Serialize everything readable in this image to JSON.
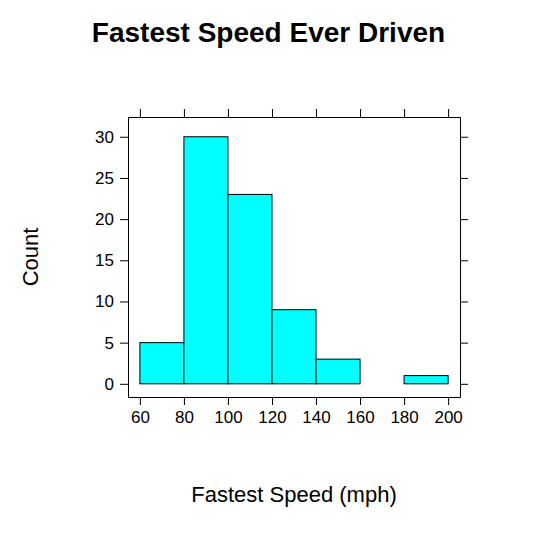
{
  "chart_data": {
    "type": "histogram",
    "title": "Fastest Speed Ever Driven",
    "x_label": "Fastest Speed (mph)",
    "y_label": "Count",
    "bins": [
      60,
      80,
      100,
      120,
      140,
      160,
      180,
      200
    ],
    "values": [
      5,
      30,
      23,
      9,
      3,
      0,
      1
    ],
    "color": "#00ffff",
    "xlim": [
      54.6,
      205.4
    ],
    "xticks": [
      60,
      80,
      100,
      120,
      140,
      160,
      180,
      200
    ],
    "ylim": [
      -1.6,
      32.4
    ],
    "yticks": [
      0,
      5,
      10,
      15,
      20,
      25,
      30
    ]
  }
}
